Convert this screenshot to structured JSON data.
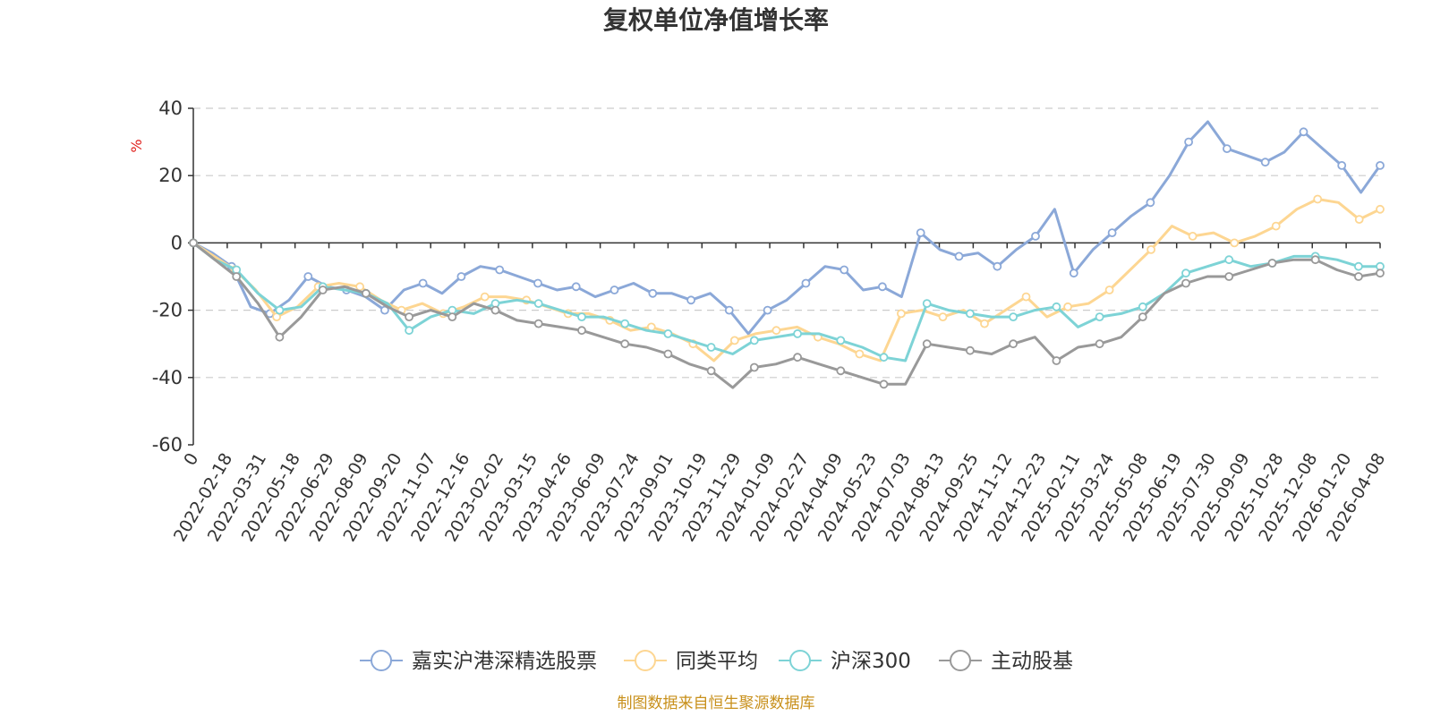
{
  "chart_data": {
    "type": "line",
    "title": "复权单位净值增长率",
    "ylabel": "%",
    "ylim": [
      -60,
      40
    ],
    "yticks": [
      40,
      20,
      0,
      -20,
      -40,
      -60
    ],
    "grid": true,
    "legend_position": "bottom",
    "source_note": "制图数据来自恒生聚源数据库",
    "x_tick_labels": [
      "0",
      "2022-02-18",
      "2022-03-31",
      "2022-05-18",
      "2022-06-29",
      "2022-08-09",
      "2022-09-20",
      "2022-11-07",
      "2022-12-16",
      "2023-02-02",
      "2023-03-15",
      "2023-04-26",
      "2023-06-09",
      "2023-07-24",
      "2023-09-01",
      "2023-10-19",
      "2023-11-29",
      "2024-01-09",
      "2024-02-27",
      "2024-04-09",
      "2024-05-23",
      "2024-07-03",
      "2024-08-13",
      "2024-09-25",
      "2024-11-12",
      "2024-12-23",
      "2025-02-11",
      "2025-03-24",
      "2025-05-08",
      "2025-06-19",
      "2025-07-30",
      "2025-09-09",
      "2025-10-28",
      "2025-12-08",
      "2026-01-20",
      "2026-04-08"
    ],
    "series": [
      {
        "name": "嘉实沪港深精选股票",
        "color": "#8ba8d8",
        "values": [
          0,
          -3,
          -7,
          -19,
          -21,
          -17,
          -10,
          -13,
          -14,
          -16,
          -20,
          -14,
          -12,
          -15,
          -10,
          -7,
          -8,
          -10,
          -12,
          -14,
          -13,
          -16,
          -14,
          -12,
          -15,
          -15,
          -17,
          -15,
          -20,
          -27,
          -20,
          -17,
          -12,
          -7,
          -8,
          -14,
          -13,
          -16,
          3,
          -2,
          -4,
          -3,
          -7,
          -2,
          2,
          10,
          -9,
          -2,
          3,
          8,
          12,
          20,
          30,
          36,
          28,
          26,
          24,
          27,
          33,
          28,
          23,
          15,
          23
        ]
      },
      {
        "name": "同类平均",
        "color": "#fdd692",
        "values": [
          0,
          -4,
          -8,
          -14,
          -22,
          -19,
          -13,
          -12,
          -13,
          -17,
          -20,
          -18,
          -21,
          -19,
          -16,
          -16,
          -17,
          -19,
          -21,
          -21,
          -23,
          -26,
          -25,
          -27,
          -30,
          -35,
          -29,
          -27,
          -26,
          -25,
          -28,
          -30,
          -33,
          -35,
          -21,
          -20,
          -22,
          -20,
          -24,
          -20,
          -16,
          -22,
          -19,
          -18,
          -14,
          -8,
          -2,
          5,
          2,
          3,
          0,
          2,
          5,
          10,
          13,
          12,
          7,
          10
        ]
      },
      {
        "name": "沪深300",
        "color": "#7dd3d6",
        "values": [
          0,
          -5,
          -8,
          -15,
          -20,
          -19,
          -13,
          -14,
          -15,
          -18,
          -26,
          -22,
          -20,
          -21,
          -18,
          -17,
          -18,
          -20,
          -22,
          -22,
          -24,
          -26,
          -27,
          -29,
          -31,
          -33,
          -29,
          -28,
          -27,
          -27,
          -29,
          -31,
          -34,
          -35,
          -18,
          -20,
          -21,
          -22,
          -22,
          -20,
          -19,
          -25,
          -22,
          -21,
          -19,
          -15,
          -9,
          -7,
          -5,
          -7,
          -6,
          -4,
          -4,
          -5,
          -7,
          -7
        ]
      },
      {
        "name": "主动股基",
        "color": "#999999",
        "values": [
          0,
          -5,
          -10,
          -18,
          -28,
          -22,
          -14,
          -13,
          -15,
          -19,
          -22,
          -20,
          -22,
          -18,
          -20,
          -23,
          -24,
          -25,
          -26,
          -28,
          -30,
          -31,
          -33,
          -36,
          -38,
          -43,
          -37,
          -36,
          -34,
          -36,
          -38,
          -40,
          -42,
          -42,
          -30,
          -31,
          -32,
          -33,
          -30,
          -28,
          -35,
          -31,
          -30,
          -28,
          -22,
          -15,
          -12,
          -10,
          -10,
          -8,
          -6,
          -5,
          -5,
          -8,
          -10,
          -9
        ]
      }
    ]
  }
}
